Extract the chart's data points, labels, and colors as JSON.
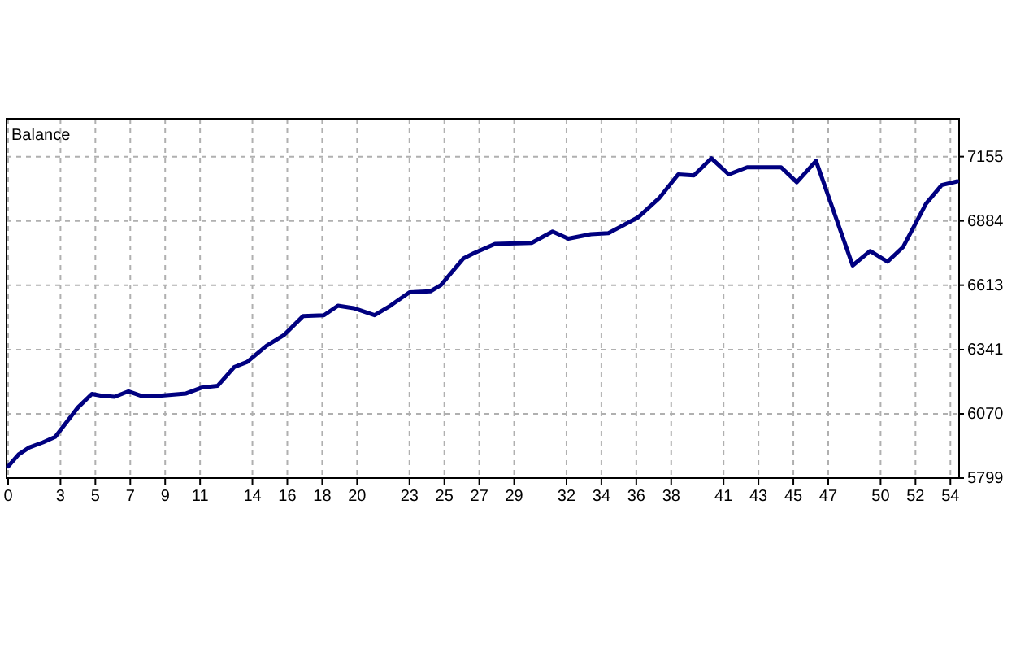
{
  "chart_data": {
    "type": "line",
    "title": "Balance",
    "x": [
      0,
      0.6,
      1.2,
      2.0,
      2.7,
      4.0,
      4.8,
      5.3,
      6.1,
      6.9,
      7.6,
      8.8,
      10.2,
      11.1,
      12.0,
      12.95,
      13.7,
      14.8,
      15.8,
      16.9,
      18.1,
      18.9,
      19.8,
      21.0,
      21.9,
      23.0,
      24.2,
      24.8,
      26.1,
      26.7,
      27.9,
      30.0,
      31.2,
      32.1,
      33.4,
      34.4,
      36.1,
      37.3,
      38.4,
      39.3,
      40.3,
      41.3,
      42.35,
      44.3,
      45.2,
      46.3,
      48.4,
      49.4,
      50.4,
      51.3,
      52.6,
      53.5,
      54.4
    ],
    "series": [
      {
        "color": "#000080",
        "values": [
          5848,
          5899,
          5928,
          5950,
          5973,
          6097,
          6154,
          6147,
          6142,
          6165,
          6147,
          6147,
          6156,
          6181,
          6188,
          6267,
          6289,
          6357,
          6402,
          6482,
          6486,
          6526,
          6516,
          6486,
          6526,
          6583,
          6587,
          6613,
          6726,
          6748,
          6787,
          6791,
          6839,
          6809,
          6828,
          6832,
          6899,
          6979,
          7080,
          7076,
          7148,
          7080,
          7110,
          7110,
          7047,
          7137,
          6696,
          6757,
          6712,
          6775,
          6956,
          7035,
          7051
        ]
      }
    ],
    "xlim": [
      0,
      54.5
    ],
    "ylim": [
      5799,
      7315
    ],
    "xticks": [
      0,
      3,
      5,
      7,
      9,
      11,
      14,
      16,
      18,
      20,
      23,
      25,
      27,
      29,
      32,
      34,
      36,
      38,
      41,
      43,
      45,
      47,
      50,
      52,
      54
    ],
    "yticks": [
      5799,
      6070,
      6341,
      6613,
      6884,
      7155
    ],
    "grid": true,
    "marker": "none",
    "line_style": "solid"
  }
}
